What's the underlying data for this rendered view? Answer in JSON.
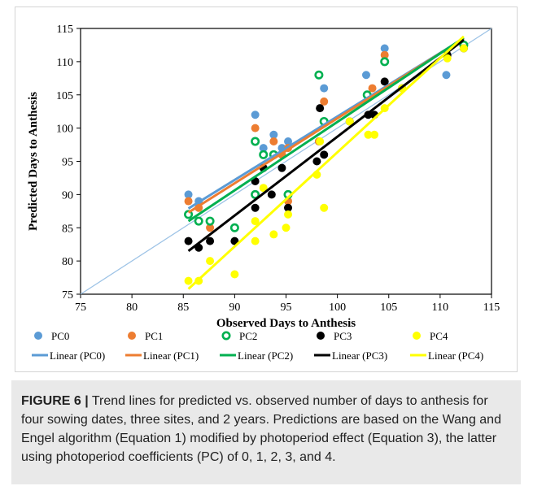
{
  "caption": {
    "label": "FIGURE 6 |",
    "text": " Trend lines for predicted vs. observed number of days to anthesis for four sowing dates, three sites, and 2 years. Predictions are based on the Wang and Engel algorithm (Equation 1) modified by photoperiod effect (Equation 3), the latter using photoperiod coefficients (PC) of 0, 1, 2, 3, and 4."
  },
  "colors": {
    "PC0": "#5b9bd5",
    "PC1": "#ed7d31",
    "PC2": "#00b050",
    "PC3": "#000000",
    "PC4": "#ffff00",
    "identity": "#9dc3e6"
  },
  "chart_data": {
    "type": "scatter",
    "xlabel": "Observed Days to Anthesis",
    "ylabel": "Predicted Days to Anthesis",
    "xlim": [
      75,
      115
    ],
    "ylim": [
      75,
      115
    ],
    "x_ticks": [
      75,
      80,
      85,
      90,
      95,
      100,
      105,
      110,
      115
    ],
    "y_ticks": [
      75,
      80,
      85,
      90,
      95,
      100,
      105,
      110,
      115
    ],
    "grid": false,
    "legend_position": "bottom",
    "identity_line": true,
    "series": [
      {
        "name": "PC0",
        "points": [
          [
            85.5,
            90
          ],
          [
            86.5,
            89
          ],
          [
            92,
            102
          ],
          [
            92.8,
            97
          ],
          [
            93.8,
            99
          ],
          [
            94.6,
            97
          ],
          [
            95.2,
            98
          ],
          [
            98.2,
            98
          ],
          [
            98.7,
            106
          ],
          [
            102.8,
            108
          ],
          [
            104.6,
            112
          ],
          [
            110.6,
            108
          ],
          [
            112.3,
            112.5
          ]
        ]
      },
      {
        "name": "PC1",
        "points": [
          [
            85.5,
            89
          ],
          [
            86.5,
            88
          ],
          [
            87.6,
            85
          ],
          [
            92,
            100
          ],
          [
            92.8,
            96
          ],
          [
            93.8,
            98
          ],
          [
            94.6,
            96
          ],
          [
            95.2,
            97
          ],
          [
            95.2,
            89
          ],
          [
            98.2,
            98
          ],
          [
            98.7,
            104
          ],
          [
            103.4,
            106
          ],
          [
            104.6,
            111
          ],
          [
            112.3,
            112.5
          ]
        ]
      },
      {
        "name": "PC2",
        "points": [
          [
            85.5,
            87
          ],
          [
            86.5,
            86
          ],
          [
            87.6,
            86
          ],
          [
            90,
            85
          ],
          [
            92,
            98
          ],
          [
            92,
            90
          ],
          [
            92.8,
            96
          ],
          [
            93.8,
            96
          ],
          [
            95.2,
            90
          ],
          [
            98.2,
            108
          ],
          [
            98.7,
            101
          ],
          [
            102.9,
            105
          ],
          [
            104.6,
            110
          ],
          [
            112.3,
            112.5
          ]
        ]
      },
      {
        "name": "PC3",
        "points": [
          [
            85.5,
            83
          ],
          [
            86.5,
            82
          ],
          [
            87.6,
            83
          ],
          [
            90,
            83
          ],
          [
            92,
            92
          ],
          [
            92,
            88
          ],
          [
            92.8,
            94
          ],
          [
            93.6,
            90
          ],
          [
            94.6,
            94
          ],
          [
            95.2,
            88
          ],
          [
            98,
            95
          ],
          [
            98.3,
            103
          ],
          [
            98.7,
            96
          ],
          [
            101.2,
            101
          ],
          [
            103.0,
            102
          ],
          [
            103.6,
            102
          ],
          [
            104.6,
            107
          ],
          [
            106.3,
            106
          ],
          [
            110.7,
            111
          ],
          [
            112.3,
            112
          ]
        ]
      },
      {
        "name": "PC4",
        "points": [
          [
            85.5,
            77
          ],
          [
            86.5,
            77
          ],
          [
            87.6,
            80
          ],
          [
            90,
            78
          ],
          [
            92,
            86
          ],
          [
            92,
            83
          ],
          [
            92.8,
            91
          ],
          [
            93.8,
            84
          ],
          [
            95,
            85
          ],
          [
            95.2,
            87
          ],
          [
            98,
            93
          ],
          [
            98.3,
            98
          ],
          [
            98.7,
            88
          ],
          [
            101.2,
            101
          ],
          [
            103.0,
            99
          ],
          [
            103.6,
            99
          ],
          [
            104.6,
            103
          ],
          [
            106.3,
            106
          ],
          [
            110.7,
            110.5
          ],
          [
            112.3,
            112
          ]
        ]
      }
    ],
    "trend_lines": [
      {
        "name": "Linear (PC0)",
        "series": "PC0",
        "x": [
          85.5,
          112.3
        ],
        "y": [
          87.9,
          113.5
        ]
      },
      {
        "name": "Linear (PC1)",
        "series": "PC1",
        "x": [
          85.5,
          112.3
        ],
        "y": [
          87.3,
          113.5
        ]
      },
      {
        "name": "Linear (PC2)",
        "series": "PC2",
        "x": [
          85.5,
          112.3
        ],
        "y": [
          86.0,
          113.6
        ]
      },
      {
        "name": "Linear (PC3)",
        "series": "PC3",
        "x": [
          85.5,
          112.3
        ],
        "y": [
          81.5,
          113.3
        ]
      },
      {
        "name": "Linear (PC4)",
        "series": "PC4",
        "x": [
          85.5,
          112.3
        ],
        "y": [
          75.8,
          113.8
        ]
      }
    ]
  }
}
